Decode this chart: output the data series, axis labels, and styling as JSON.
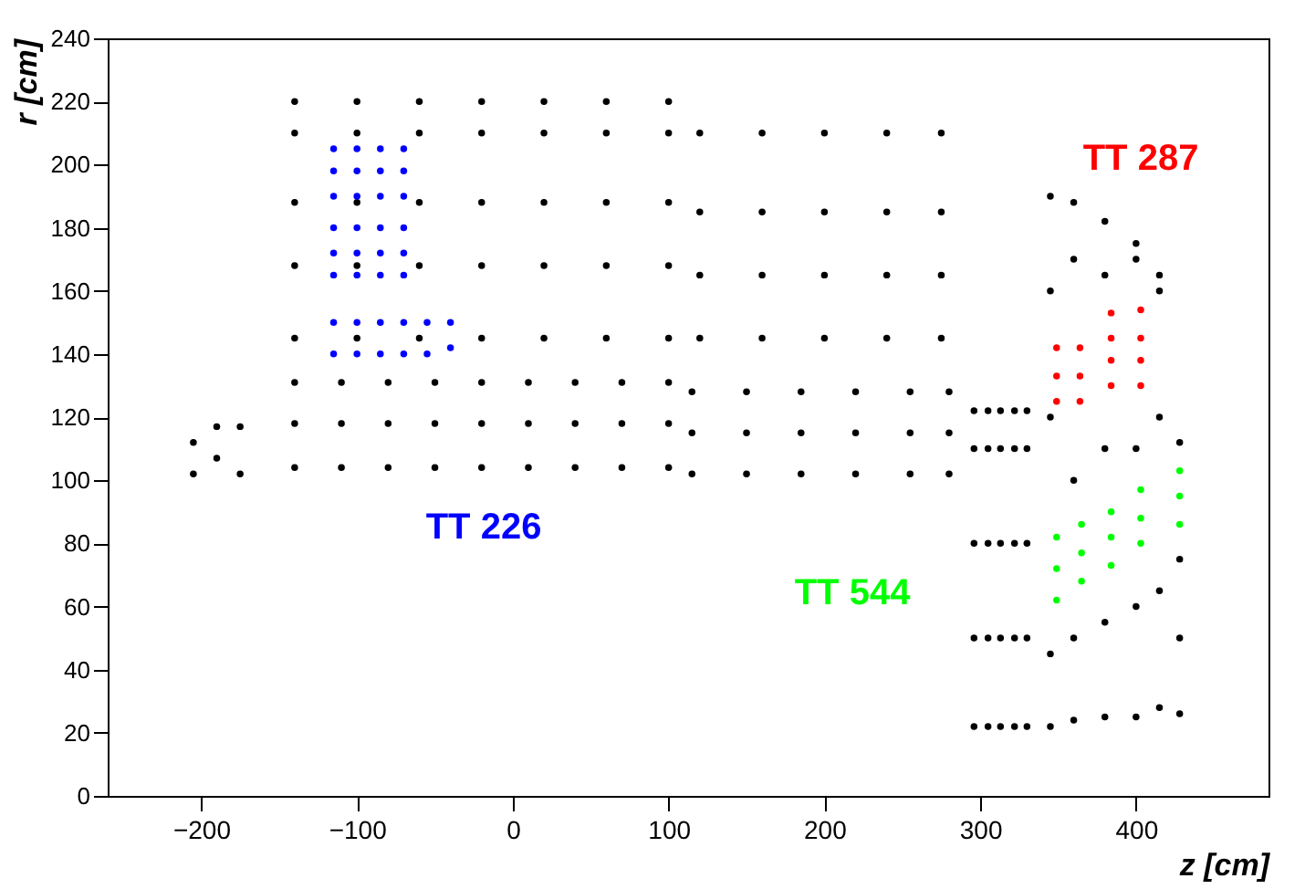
{
  "chart_data": {
    "type": "scatter",
    "xlabel": "z [cm]",
    "ylabel": "r [cm]",
    "xlim": [
      -260,
      485
    ],
    "ylim": [
      0,
      240
    ],
    "xticks": [
      -200,
      -100,
      0,
      100,
      200,
      300,
      400
    ],
    "yticks": [
      0,
      20,
      40,
      60,
      80,
      100,
      120,
      140,
      160,
      180,
      200,
      220,
      240
    ],
    "grid": false,
    "series": [
      {
        "color": "#000000",
        "x": [
          -205,
          -205,
          -190,
          -190,
          -175,
          -175,
          -140,
          -140,
          -140,
          -110,
          -110,
          -110,
          -80,
          -80,
          -80,
          -50,
          -50,
          -50,
          -20,
          -20,
          -20,
          10,
          10,
          10,
          40,
          40,
          40,
          70,
          70,
          70,
          100,
          100,
          100,
          -140,
          -140,
          -140,
          -140,
          -140,
          -100,
          -100,
          -100,
          -100,
          -100,
          -60,
          -60,
          -60,
          -60,
          -60,
          -20,
          -20,
          -20,
          -20,
          -20,
          20,
          20,
          20,
          20,
          20,
          60,
          60,
          60,
          60,
          60,
          100,
          100,
          100,
          100,
          100,
          115,
          115,
          115,
          150,
          150,
          150,
          185,
          185,
          185,
          220,
          220,
          220,
          255,
          255,
          255,
          280,
          280,
          280,
          120,
          120,
          120,
          120,
          160,
          160,
          160,
          160,
          200,
          200,
          200,
          200,
          240,
          240,
          240,
          240,
          275,
          275,
          275,
          275,
          296,
          296,
          296,
          296,
          296,
          305,
          305,
          305,
          305,
          305,
          313,
          313,
          313,
          313,
          313,
          322,
          322,
          322,
          322,
          322,
          330,
          330,
          330,
          330,
          330,
          345,
          345,
          345,
          345,
          345,
          360,
          360,
          360,
          360,
          360,
          380,
          380,
          380,
          380,
          380,
          400,
          400,
          400,
          400,
          400,
          415,
          415,
          415,
          415,
          415,
          428,
          428,
          428,
          428
        ],
        "values": [
          102,
          112,
          107,
          117,
          102,
          117,
          104,
          118,
          131,
          104,
          118,
          131,
          104,
          118,
          131,
          104,
          118,
          131,
          104,
          118,
          131,
          104,
          118,
          131,
          104,
          118,
          131,
          104,
          118,
          131,
          104,
          118,
          131,
          145,
          168,
          188,
          210,
          220,
          145,
          168,
          188,
          210,
          220,
          145,
          168,
          188,
          210,
          220,
          145,
          168,
          188,
          210,
          220,
          145,
          168,
          188,
          210,
          220,
          145,
          168,
          188,
          210,
          220,
          145,
          168,
          188,
          210,
          220,
          102,
          115,
          128,
          102,
          115,
          128,
          102,
          115,
          128,
          102,
          115,
          128,
          102,
          115,
          128,
          102,
          115,
          128,
          145,
          165,
          185,
          210,
          145,
          165,
          185,
          210,
          145,
          165,
          185,
          210,
          145,
          165,
          185,
          210,
          145,
          165,
          185,
          210,
          22,
          50,
          80,
          110,
          122,
          22,
          50,
          80,
          110,
          122,
          22,
          50,
          80,
          110,
          122,
          22,
          50,
          80,
          110,
          122,
          22,
          50,
          80,
          110,
          122,
          22,
          45,
          120,
          160,
          190,
          24,
          50,
          100,
          170,
          188,
          25,
          55,
          110,
          165,
          182,
          25,
          60,
          110,
          170,
          175,
          28,
          65,
          120,
          160,
          165,
          26,
          50,
          75,
          112
        ]
      },
      {
        "color": "#0000ff",
        "x": [
          -115,
          -115,
          -100,
          -100,
          -85,
          -85,
          -70,
          -70,
          -55,
          -55,
          -40,
          -40,
          -115,
          -115,
          -115,
          -115,
          -115,
          -115,
          -100,
          -100,
          -100,
          -100,
          -100,
          -100,
          -85,
          -85,
          -85,
          -85,
          -85,
          -85,
          -70,
          -70,
          -70,
          -70,
          -70,
          -70
        ],
        "values": [
          140,
          150,
          140,
          150,
          140,
          150,
          140,
          150,
          140,
          150,
          142,
          150,
          165,
          172,
          180,
          190,
          198,
          205,
          165,
          172,
          180,
          190,
          198,
          205,
          165,
          172,
          180,
          190,
          198,
          205,
          165,
          172,
          180,
          190,
          198,
          205
        ]
      },
      {
        "color": "#ff0000",
        "x": [
          349,
          349,
          349,
          364,
          364,
          364,
          384,
          384,
          384,
          384,
          403,
          403,
          403,
          403
        ],
        "values": [
          125,
          133,
          142,
          125,
          133,
          142,
          130,
          138,
          145,
          153,
          130,
          138,
          145,
          154
        ]
      },
      {
        "color": "#00ff00",
        "x": [
          349,
          349,
          349,
          365,
          365,
          365,
          384,
          384,
          384,
          403,
          403,
          403,
          428,
          428,
          428
        ],
        "values": [
          62,
          72,
          82,
          68,
          77,
          86,
          73,
          82,
          90,
          80,
          88,
          97,
          86,
          95,
          103
        ]
      }
    ],
    "annotations": [
      "TT 226",
      "TT 287",
      "TT 544"
    ]
  }
}
